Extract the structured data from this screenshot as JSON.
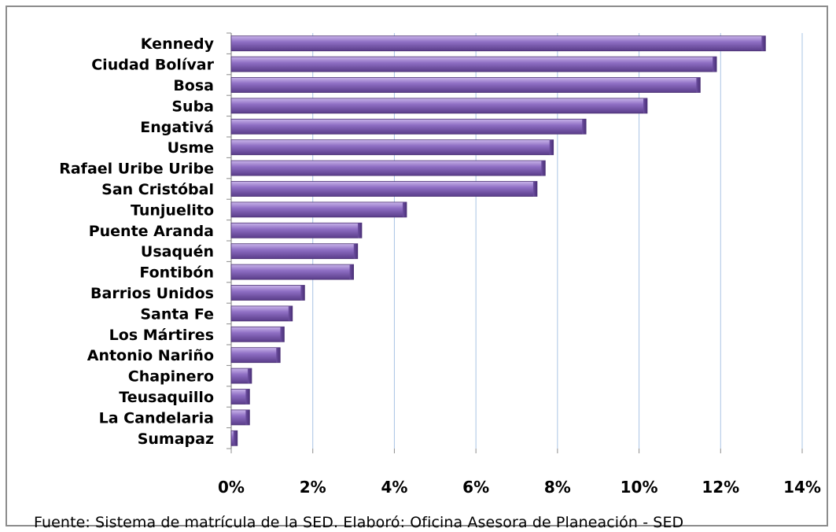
{
  "chart_data": {
    "type": "bar",
    "orientation": "horizontal",
    "categories": [
      "Kennedy",
      "Ciudad Bolívar",
      "Bosa",
      "Suba",
      "Engativá",
      "Usme",
      "Rafael Uribe Uribe",
      "San Cristóbal",
      "Tunjuelito",
      "Puente Aranda",
      "Usaquén",
      "Fontibón",
      "Barrios Unidos",
      "Santa Fe",
      "Los Mártires",
      "Antonio Nariño",
      "Chapinero",
      "Teusaquillo",
      "La Candelaria",
      "Sumapaz"
    ],
    "values": [
      13.1,
      11.9,
      11.5,
      10.2,
      8.7,
      7.9,
      7.7,
      7.5,
      4.3,
      3.2,
      3.1,
      3.0,
      1.8,
      1.5,
      1.3,
      1.2,
      0.5,
      0.45,
      0.45,
      0.15
    ],
    "xlim": [
      0,
      14
    ],
    "x_ticks": [
      0,
      2,
      4,
      6,
      8,
      10,
      12,
      14
    ],
    "x_tick_labels": [
      "0%",
      "2%",
      "4%",
      "6%",
      "8%",
      "10%",
      "12%",
      "14%"
    ],
    "grid": "vertical",
    "bar_color": "#8a6bbd",
    "title": "",
    "xlabel": "",
    "ylabel": ""
  },
  "source_note": "Fuente: Sistema de matrícula de la SED.  Elaboró: Oficina Asesora de Planeación - SED"
}
